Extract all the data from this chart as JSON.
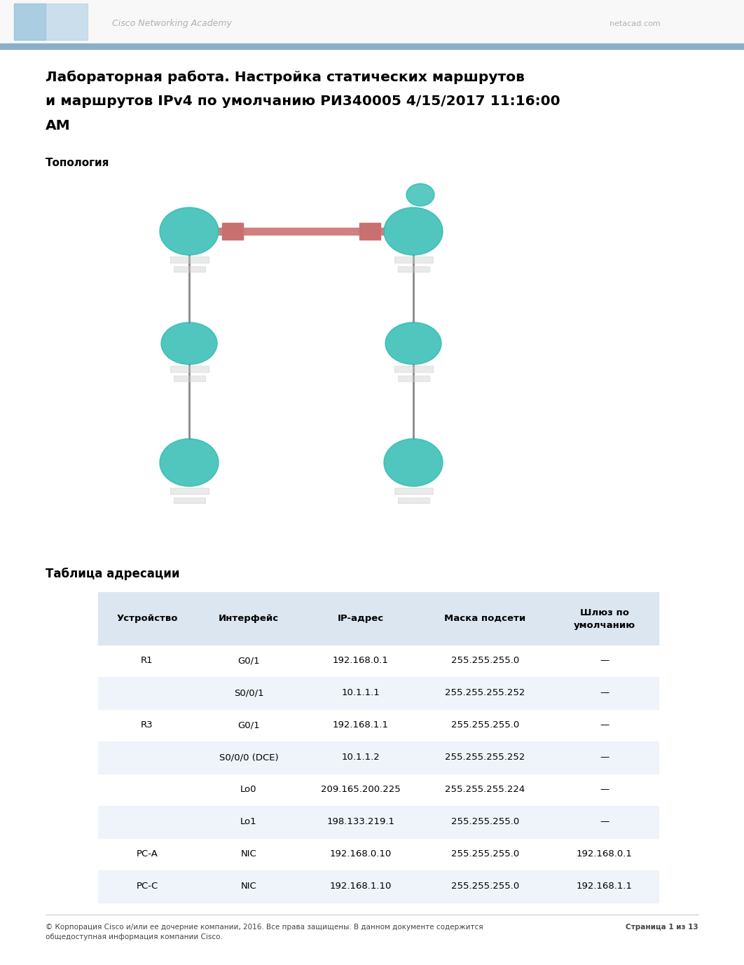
{
  "title_line1": "Лабораторная работа. Настройка статических маршрутов",
  "title_line2": "и маршрутов IPv4 по умолчанию РИ340005 4/15/2017 11:16:00",
  "title_line3": "АМ",
  "topology_label": "Топология",
  "table_title": "Таблица адресации",
  "header_row": [
    "Устройство",
    "Интерфейс",
    "IP-адрес",
    "Маска подсети",
    "Шлюз по\nумолчанию"
  ],
  "table_rows": [
    [
      "R1",
      "G0/1",
      "192.168.0.1",
      "255.255.255.0",
      "—"
    ],
    [
      "",
      "S0/0/1",
      "10.1.1.1",
      "255.255.255.252",
      "—"
    ],
    [
      "R3",
      "G0/1",
      "192.168.1.1",
      "255.255.255.0",
      "—"
    ],
    [
      "",
      "S0/0/0 (DCE)",
      "10.1.1.2",
      "255.255.255.252",
      "—"
    ],
    [
      "",
      "Lo0",
      "209.165.200.225",
      "255.255.255.224",
      "—"
    ],
    [
      "",
      "Lo1",
      "198.133.219.1",
      "255.255.255.0",
      "—"
    ],
    [
      "PC-A",
      "NIC",
      "192.168.0.10",
      "255.255.255.0",
      "192.168.0.1"
    ],
    [
      "PC-C",
      "NIC",
      "192.168.1.10",
      "255.255.255.0",
      "192.168.1.1"
    ]
  ],
  "footer_left": "© Корпорация Cisco и/или ее дочерние компании, 2016. Все права защищены. В данном документе содержится",
  "footer_left2": "общедоступная информация компании Cisco.",
  "footer_right": "Страница 1 из 13",
  "header_bar_color": "#8aafc8",
  "table_header_bg": "#dce6f1",
  "table_alt_row_bg": "#eef4f9",
  "page_bg": "#ffffff",
  "text_color": "#000000",
  "title_fontsize": 14.5,
  "body_fontsize": 9.5,
  "small_fontsize": 7.5,
  "topo_fontsize": 8
}
